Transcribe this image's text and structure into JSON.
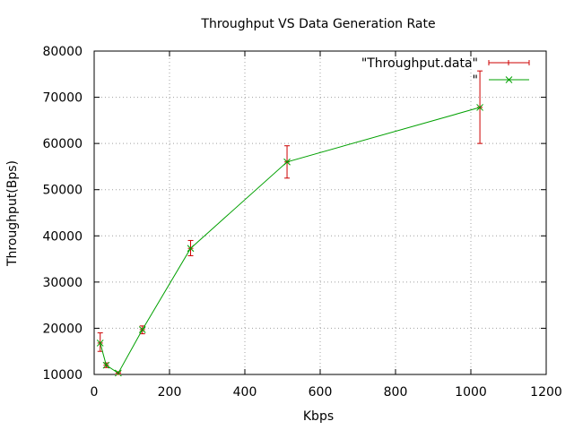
{
  "chart_data": {
    "type": "line",
    "title": "Throughput VS Data Generation Rate",
    "xlabel": "Kbps",
    "ylabel": "Throughput(Bps)",
    "xlim": [
      0,
      1200
    ],
    "ylim": [
      10000,
      80000
    ],
    "xticks": [
      0,
      200,
      400,
      600,
      800,
      1000,
      1200
    ],
    "yticks": [
      10000,
      20000,
      30000,
      40000,
      50000,
      60000,
      70000,
      80000
    ],
    "grid": true,
    "legend_position": "top-right",
    "series": [
      {
        "name": "\"Throughput.data\"",
        "kind": "errorbars",
        "color": "#cc0000",
        "x": [
          16,
          32,
          64,
          128,
          256,
          512,
          1024
        ],
        "y": [
          16800,
          12000,
          10300,
          19700,
          37300,
          56000,
          67800
        ],
        "ylow": [
          15000,
          11500,
          10000,
          18800,
          35700,
          52500,
          60000
        ],
        "yhigh": [
          19000,
          12500,
          10600,
          20500,
          39000,
          59500,
          75700
        ]
      },
      {
        "name": "\"",
        "kind": "linespoints",
        "color": "#00a000",
        "x": [
          16,
          32,
          64,
          128,
          256,
          512,
          1024
        ],
        "y": [
          16800,
          12000,
          10300,
          19700,
          37300,
          56000,
          67800
        ]
      }
    ]
  }
}
